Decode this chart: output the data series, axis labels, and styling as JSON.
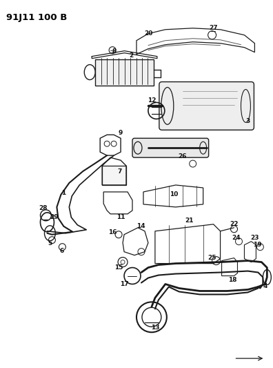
{
  "title": "91J11 100 B",
  "bg_color": "#ffffff",
  "line_color": "#1a1a1a",
  "label_color": "#111111",
  "fig_width": 3.96,
  "fig_height": 5.33,
  "dpi": 100
}
